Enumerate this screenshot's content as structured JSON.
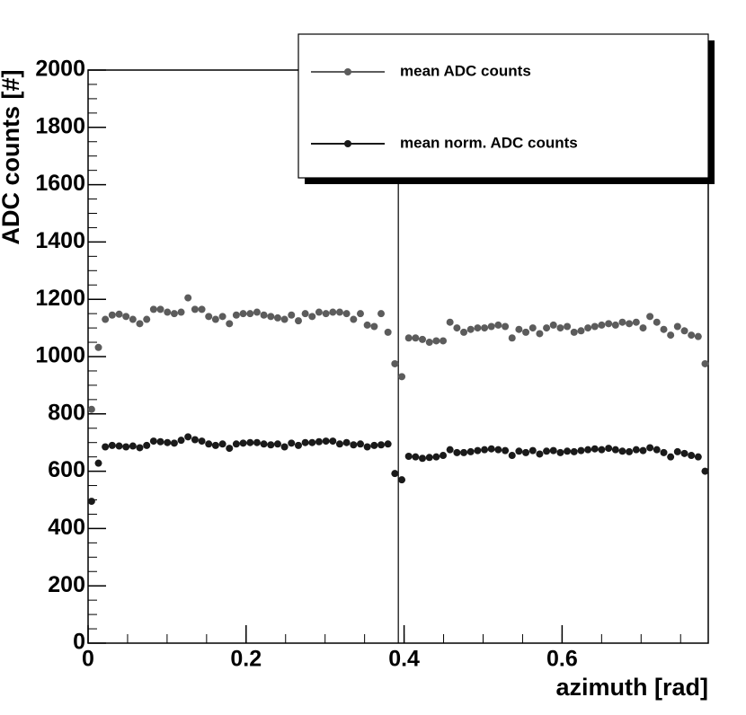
{
  "chart_data": {
    "type": "scatter",
    "xlabel": "azimuth [rad]",
    "ylabel": "ADC counts [#]",
    "xlim": [
      0,
      0.785
    ],
    "ylim": [
      0,
      2000
    ],
    "xticks": [
      0,
      0.2,
      0.4,
      0.6
    ],
    "yticks": [
      0,
      200,
      400,
      600,
      800,
      1000,
      1200,
      1400,
      1600,
      1800,
      2000
    ],
    "minor_ticks": 4,
    "vlines": [
      0.3927
    ],
    "legend": "top-right",
    "x": [
      0.0044,
      0.0131,
      0.0218,
      0.0305,
      0.0393,
      0.048,
      0.0567,
      0.0654,
      0.0742,
      0.0829,
      0.0916,
      0.1004,
      0.1091,
      0.1178,
      0.1265,
      0.1353,
      0.144,
      0.1527,
      0.1614,
      0.1702,
      0.1789,
      0.1876,
      0.1963,
      0.2051,
      0.2138,
      0.2225,
      0.2313,
      0.24,
      0.2487,
      0.2574,
      0.2662,
      0.2749,
      0.2836,
      0.2923,
      0.3011,
      0.3098,
      0.3185,
      0.3272,
      0.336,
      0.3447,
      0.3534,
      0.3622,
      0.3709,
      0.3796,
      0.3883,
      0.3971,
      0.4058,
      0.4145,
      0.4232,
      0.432,
      0.4407,
      0.4494,
      0.4581,
      0.4669,
      0.4756,
      0.4843,
      0.4931,
      0.5018,
      0.5105,
      0.5192,
      0.528,
      0.5367,
      0.5454,
      0.5541,
      0.5629,
      0.5716,
      0.5803,
      0.589,
      0.5978,
      0.6065,
      0.6152,
      0.624,
      0.6327,
      0.6414,
      0.6501,
      0.6589,
      0.6676,
      0.6763,
      0.685,
      0.6938,
      0.7025,
      0.7112,
      0.7199,
      0.7287,
      0.7374,
      0.7461,
      0.7549,
      0.7636,
      0.7723,
      0.781
    ],
    "series": [
      {
        "name": "mean ADC counts",
        "color": "#5c5c5c",
        "values": [
          816,
          1032,
          1130,
          1145,
          1148,
          1140,
          1130,
          1115,
          1130,
          1165,
          1165,
          1155,
          1150,
          1155,
          1205,
          1165,
          1165,
          1140,
          1130,
          1140,
          1115,
          1145,
          1150,
          1150,
          1155,
          1145,
          1140,
          1135,
          1130,
          1145,
          1125,
          1150,
          1140,
          1155,
          1150,
          1155,
          1155,
          1150,
          1130,
          1150,
          1110,
          1105,
          1150,
          1085,
          975,
          930,
          1065,
          1065,
          1060,
          1050,
          1055,
          1055,
          1120,
          1100,
          1085,
          1095,
          1100,
          1100,
          1105,
          1110,
          1105,
          1065,
          1095,
          1085,
          1100,
          1080,
          1100,
          1110,
          1100,
          1105,
          1085,
          1090,
          1100,
          1105,
          1110,
          1115,
          1110,
          1120,
          1115,
          1120,
          1100,
          1140,
          1120,
          1095,
          1075,
          1105,
          1090,
          1075,
          1070,
          975
        ]
      },
      {
        "name": "mean norm. ADC counts",
        "color": "#1a1a1a",
        "values": [
          495,
          628,
          685,
          690,
          688,
          685,
          688,
          682,
          690,
          705,
          703,
          700,
          698,
          708,
          720,
          710,
          705,
          695,
          690,
          695,
          680,
          695,
          698,
          700,
          700,
          695,
          692,
          695,
          685,
          698,
          690,
          700,
          700,
          703,
          705,
          705,
          695,
          700,
          692,
          695,
          685,
          690,
          692,
          695,
          592,
          570,
          652,
          650,
          645,
          648,
          650,
          655,
          675,
          665,
          665,
          668,
          672,
          675,
          678,
          675,
          672,
          655,
          670,
          665,
          672,
          660,
          670,
          672,
          665,
          670,
          668,
          672,
          675,
          678,
          675,
          680,
          675,
          670,
          668,
          675,
          672,
          682,
          675,
          665,
          650,
          668,
          662,
          655,
          650,
          600
        ]
      }
    ]
  }
}
